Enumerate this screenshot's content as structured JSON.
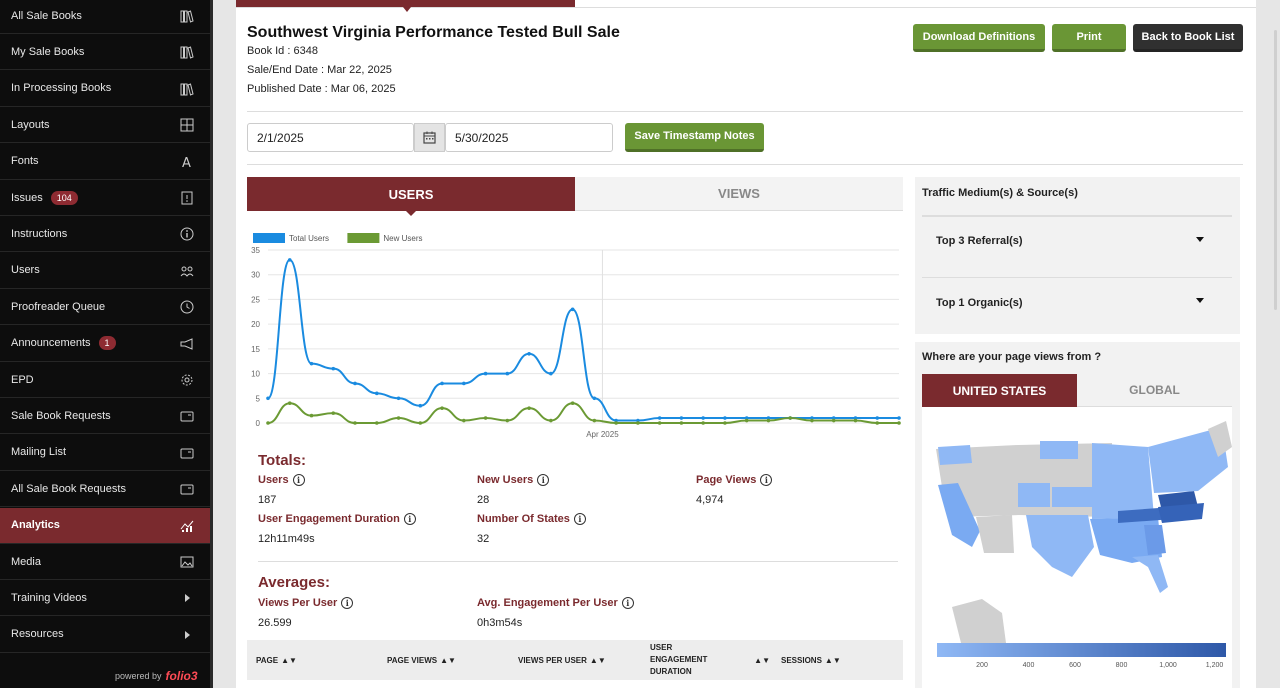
{
  "sidebar": {
    "items": [
      {
        "label": "All Sale Books",
        "icon": "books-icon"
      },
      {
        "label": "My Sale Books",
        "icon": "books-icon"
      },
      {
        "label": "In Processing Books",
        "icon": "books-icon"
      },
      {
        "label": "Layouts",
        "icon": "layout-grid-icon"
      },
      {
        "label": "Fonts",
        "icon": "font-icon"
      },
      {
        "label": "Issues",
        "icon": "document-alert-icon",
        "badge": "104"
      },
      {
        "label": "Instructions",
        "icon": "info-icon"
      },
      {
        "label": "Users",
        "icon": "users-icon"
      },
      {
        "label": "Proofreader Queue",
        "icon": "clock-icon"
      },
      {
        "label": "Announcements",
        "icon": "megaphone-icon",
        "badge": "1"
      },
      {
        "label": "EPD",
        "icon": "gear-icon"
      },
      {
        "label": "Sale Book Requests",
        "icon": "folder-icon"
      },
      {
        "label": "Mailing List",
        "icon": "folder-icon"
      },
      {
        "label": "All Sale Book Requests",
        "icon": "folder-icon"
      },
      {
        "label": "Analytics",
        "icon": "analytics-icon",
        "active": true
      },
      {
        "label": "Media",
        "icon": "image-icon"
      },
      {
        "label": "Training Videos",
        "icon": "chevron-right-icon"
      },
      {
        "label": "Resources",
        "icon": "chevron-right-icon"
      }
    ],
    "powered_by": "powered by",
    "brand": "folio3"
  },
  "book": {
    "title": "Southwest Virginia Performance Tested Bull Sale",
    "book_id": "Book Id : 6348",
    "sale_end": "Sale/End Date : Mar 22, 2025",
    "published": "Published Date : Mar 06, 2025"
  },
  "buttons": {
    "download": "Download Definitions",
    "print": "Print",
    "back": "Back to Book List",
    "save_notes": "Save Timestamp Notes"
  },
  "date_range": {
    "start": "2/1/2025",
    "end": "5/30/2025"
  },
  "chart_tabs": {
    "users": "USERS",
    "views": "VIEWS"
  },
  "chart_data": {
    "type": "line",
    "ylim": [
      0,
      35
    ],
    "yticks": [
      0,
      5,
      10,
      15,
      20,
      25,
      30,
      35
    ],
    "x_tick_label": "Apr 2025",
    "legend_position": "top-left",
    "series": [
      {
        "name": "Total Users",
        "color": "#1a8be0",
        "values": [
          5,
          33,
          12,
          11,
          8,
          6,
          5,
          3.5,
          8,
          8,
          10,
          10,
          14,
          10,
          23,
          5,
          0.5,
          0.5,
          1,
          1,
          1,
          1,
          1,
          1,
          1,
          1,
          1,
          1,
          1,
          1
        ]
      },
      {
        "name": "New Users",
        "color": "#6b9a34",
        "values": [
          0,
          4,
          1.5,
          2,
          0,
          0,
          1,
          0,
          3,
          0.5,
          1,
          0.5,
          3,
          0.5,
          4,
          0.5,
          0,
          0,
          0,
          0,
          0,
          0,
          0.5,
          0.5,
          1,
          0.5,
          0.5,
          0.5,
          0,
          0
        ]
      }
    ]
  },
  "totals": {
    "heading": "Totals:",
    "users_label": "Users",
    "users_value": "187",
    "new_users_label": "New Users",
    "new_users_value": "28",
    "page_views_label": "Page Views",
    "page_views_value": "4,974",
    "engagement_label": "User Engagement Duration",
    "engagement_value": "12h11m49s",
    "states_label": "Number Of States",
    "states_value": "32"
  },
  "averages": {
    "heading": "Averages:",
    "views_per_user_label": "Views Per User",
    "views_per_user_value": "26.599",
    "engagement_per_user_label": "Avg. Engagement Per User",
    "engagement_per_user_value": "0h3m54s"
  },
  "table": {
    "headers": [
      "PAGE",
      "PAGE VIEWS",
      "VIEWS PER USER",
      "USER ENGAGEMENT DURATION",
      "SESSIONS"
    ]
  },
  "traffic": {
    "title": "Traffic Medium(s) & Source(s)",
    "referral": "Top 3 Referral(s)",
    "organic": "Top 1 Organic(s)"
  },
  "geo": {
    "title": "Where are your page views from ?",
    "tab_us": "UNITED STATES",
    "tab_global": "GLOBAL",
    "scale_ticks": [
      "200",
      "400",
      "600",
      "800",
      "1,000",
      "1,200"
    ],
    "scale_color_low": "#8fb8f5",
    "scale_color_high": "#2e58a8"
  }
}
